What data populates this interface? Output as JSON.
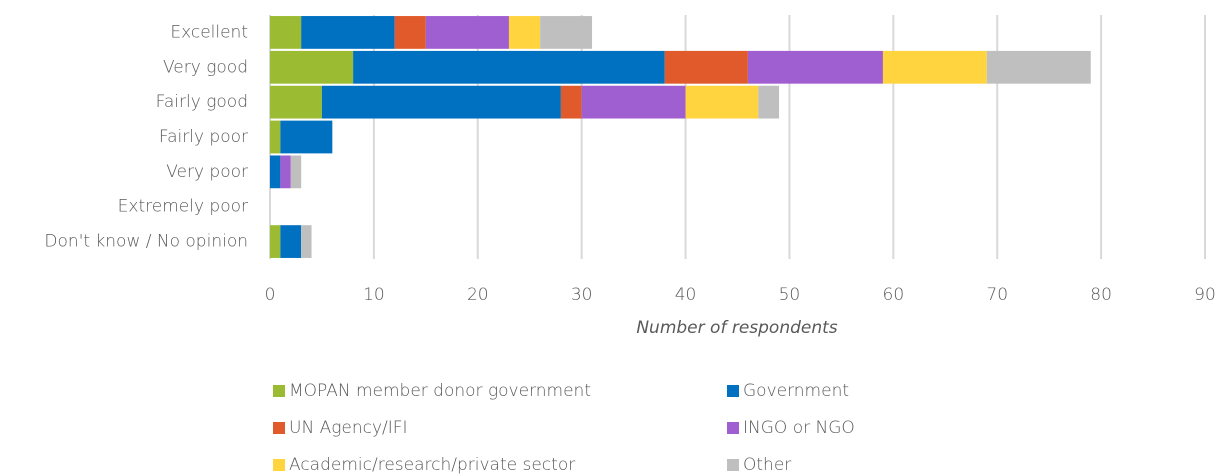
{
  "chart_data": {
    "type": "stacked_barh",
    "categories": [
      "Excellent",
      "Very good",
      "Fairly good",
      "Fairly poor",
      "Very poor",
      "Extremely poor",
      "Don't know / No opinion"
    ],
    "series": [
      {
        "name": "MOPAN member donor government",
        "color": "#9bbb33",
        "values": [
          3,
          8,
          5,
          1,
          0,
          0,
          1
        ]
      },
      {
        "name": "Government",
        "color": "#0070c0",
        "values": [
          9,
          30,
          23,
          5,
          1,
          0,
          2
        ]
      },
      {
        "name": "UN Agency/IFI",
        "color": "#e05a2b",
        "values": [
          3,
          8,
          2,
          0,
          0,
          0,
          0
        ]
      },
      {
        "name": "INGO or NGO",
        "color": "#9f5fd0",
        "values": [
          8,
          13,
          10,
          0,
          1,
          0,
          0
        ]
      },
      {
        "name": "Academic/research/private sector",
        "color": "#ffd43f",
        "values": [
          3,
          10,
          7,
          0,
          0,
          0,
          0
        ]
      },
      {
        "name": "Other",
        "color": "#bfbfbf",
        "values": [
          5,
          10,
          2,
          0,
          1,
          0,
          1
        ]
      }
    ],
    "x_label": "Number of respondents",
    "xlim": [
      0,
      90
    ],
    "xticks": [
      0,
      10,
      20,
      30,
      40,
      50,
      60,
      70,
      80,
      90
    ],
    "grid": true,
    "legend": "bottom"
  }
}
